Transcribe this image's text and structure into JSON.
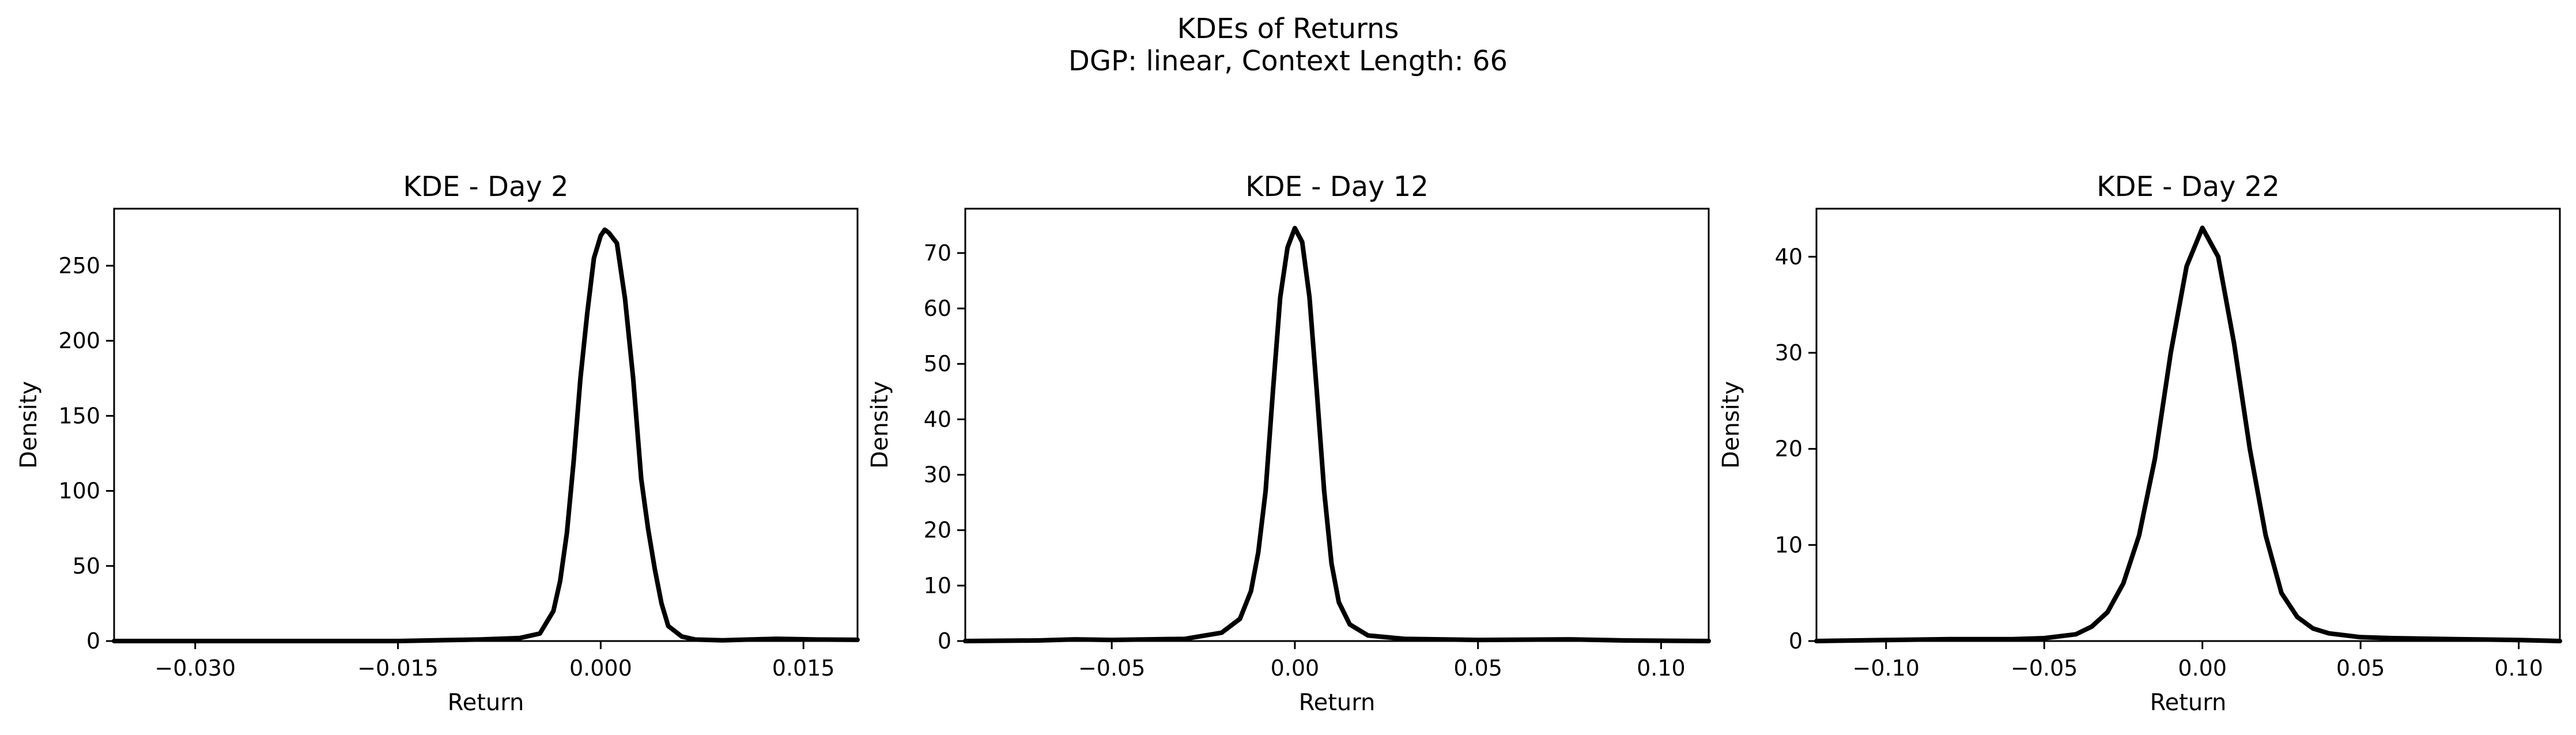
{
  "figure": {
    "title_line1": "KDEs of Returns",
    "title_line2": "DGP: linear, Context Length: 66",
    "line_color": "#000000"
  },
  "chart_data": [
    {
      "type": "line",
      "title": "KDE - Day 2",
      "xlabel": "Return",
      "ylabel": "Density",
      "xlim": [
        -0.036,
        0.019
      ],
      "ylim": [
        0,
        288
      ],
      "xticks": [
        -0.03,
        -0.015,
        0.0,
        0.015
      ],
      "xtick_labels": [
        "−0.030",
        "−0.015",
        "0.000",
        "0.015"
      ],
      "yticks": [
        0,
        50,
        100,
        150,
        200,
        250
      ],
      "ytick_labels": [
        "0",
        "50",
        "100",
        "150",
        "200",
        "250"
      ],
      "grid": false,
      "series": [
        {
          "x": [
            -0.036,
            -0.025,
            -0.015,
            -0.009,
            -0.006,
            -0.0045,
            -0.0035,
            -0.003,
            -0.0025,
            -0.002,
            -0.0015,
            -0.001,
            -0.0005,
            0.0,
            0.0003,
            0.0006,
            0.0012,
            0.0018,
            0.0024,
            0.003,
            0.0035,
            0.004,
            0.0045,
            0.005,
            0.006,
            0.007,
            0.009,
            0.011,
            0.013,
            0.016,
            0.019
          ],
          "y": [
            0,
            0,
            0,
            1,
            2,
            5,
            20,
            40,
            72,
            120,
            175,
            218,
            255,
            270,
            274,
            272,
            265,
            228,
            175,
            108,
            75,
            48,
            25,
            10,
            3,
            1,
            0.5,
            1,
            1.5,
            1,
            0.8
          ]
        }
      ]
    },
    {
      "type": "line",
      "title": "KDE - Day 12",
      "xlabel": "Return",
      "ylabel": "Density",
      "xlim": [
        -0.09,
        0.113
      ],
      "ylim": [
        0,
        78
      ],
      "xticks": [
        -0.05,
        0.0,
        0.05,
        0.1
      ],
      "xtick_labels": [
        "−0.05",
        "0.00",
        "0.05",
        "0.10"
      ],
      "yticks": [
        0,
        10,
        20,
        30,
        40,
        50,
        60,
        70
      ],
      "ytick_labels": [
        "0",
        "10",
        "20",
        "30",
        "40",
        "50",
        "60",
        "70"
      ],
      "grid": false,
      "series": [
        {
          "x": [
            -0.09,
            -0.07,
            -0.06,
            -0.05,
            -0.03,
            -0.02,
            -0.015,
            -0.012,
            -0.01,
            -0.008,
            -0.006,
            -0.004,
            -0.002,
            0.0,
            0.002,
            0.004,
            0.006,
            0.008,
            0.01,
            0.012,
            0.015,
            0.02,
            0.03,
            0.05,
            0.075,
            0.09,
            0.113
          ],
          "y": [
            0,
            0.1,
            0.3,
            0.2,
            0.4,
            1.5,
            4,
            9,
            16,
            27,
            45,
            62,
            71,
            74.5,
            72,
            62,
            45,
            27,
            14,
            7,
            3,
            1,
            0.4,
            0.2,
            0.3,
            0.1,
            0
          ]
        }
      ]
    },
    {
      "type": "line",
      "title": "KDE - Day 22",
      "xlabel": "Return",
      "ylabel": "Density",
      "xlim": [
        -0.122,
        0.113
      ],
      "ylim": [
        0,
        45
      ],
      "xticks": [
        -0.1,
        -0.05,
        0.0,
        0.05,
        0.1
      ],
      "xtick_labels": [
        "−0.10",
        "−0.05",
        "0.00",
        "0.05",
        "0.10"
      ],
      "yticks": [
        0,
        10,
        20,
        30,
        40
      ],
      "ytick_labels": [
        "0",
        "10",
        "20",
        "30",
        "40"
      ],
      "grid": false,
      "series": [
        {
          "x": [
            -0.122,
            -0.1,
            -0.08,
            -0.06,
            -0.05,
            -0.04,
            -0.035,
            -0.03,
            -0.025,
            -0.02,
            -0.015,
            -0.01,
            -0.005,
            0.0,
            0.005,
            0.01,
            0.015,
            0.02,
            0.025,
            0.03,
            0.035,
            0.04,
            0.05,
            0.06,
            0.08,
            0.1,
            0.113
          ],
          "y": [
            0,
            0.1,
            0.2,
            0.2,
            0.3,
            0.7,
            1.5,
            3,
            6,
            11,
            19,
            30,
            39,
            43,
            40,
            31,
            20,
            11,
            5,
            2.5,
            1.3,
            0.8,
            0.4,
            0.3,
            0.2,
            0.1,
            0
          ]
        }
      ]
    }
  ]
}
